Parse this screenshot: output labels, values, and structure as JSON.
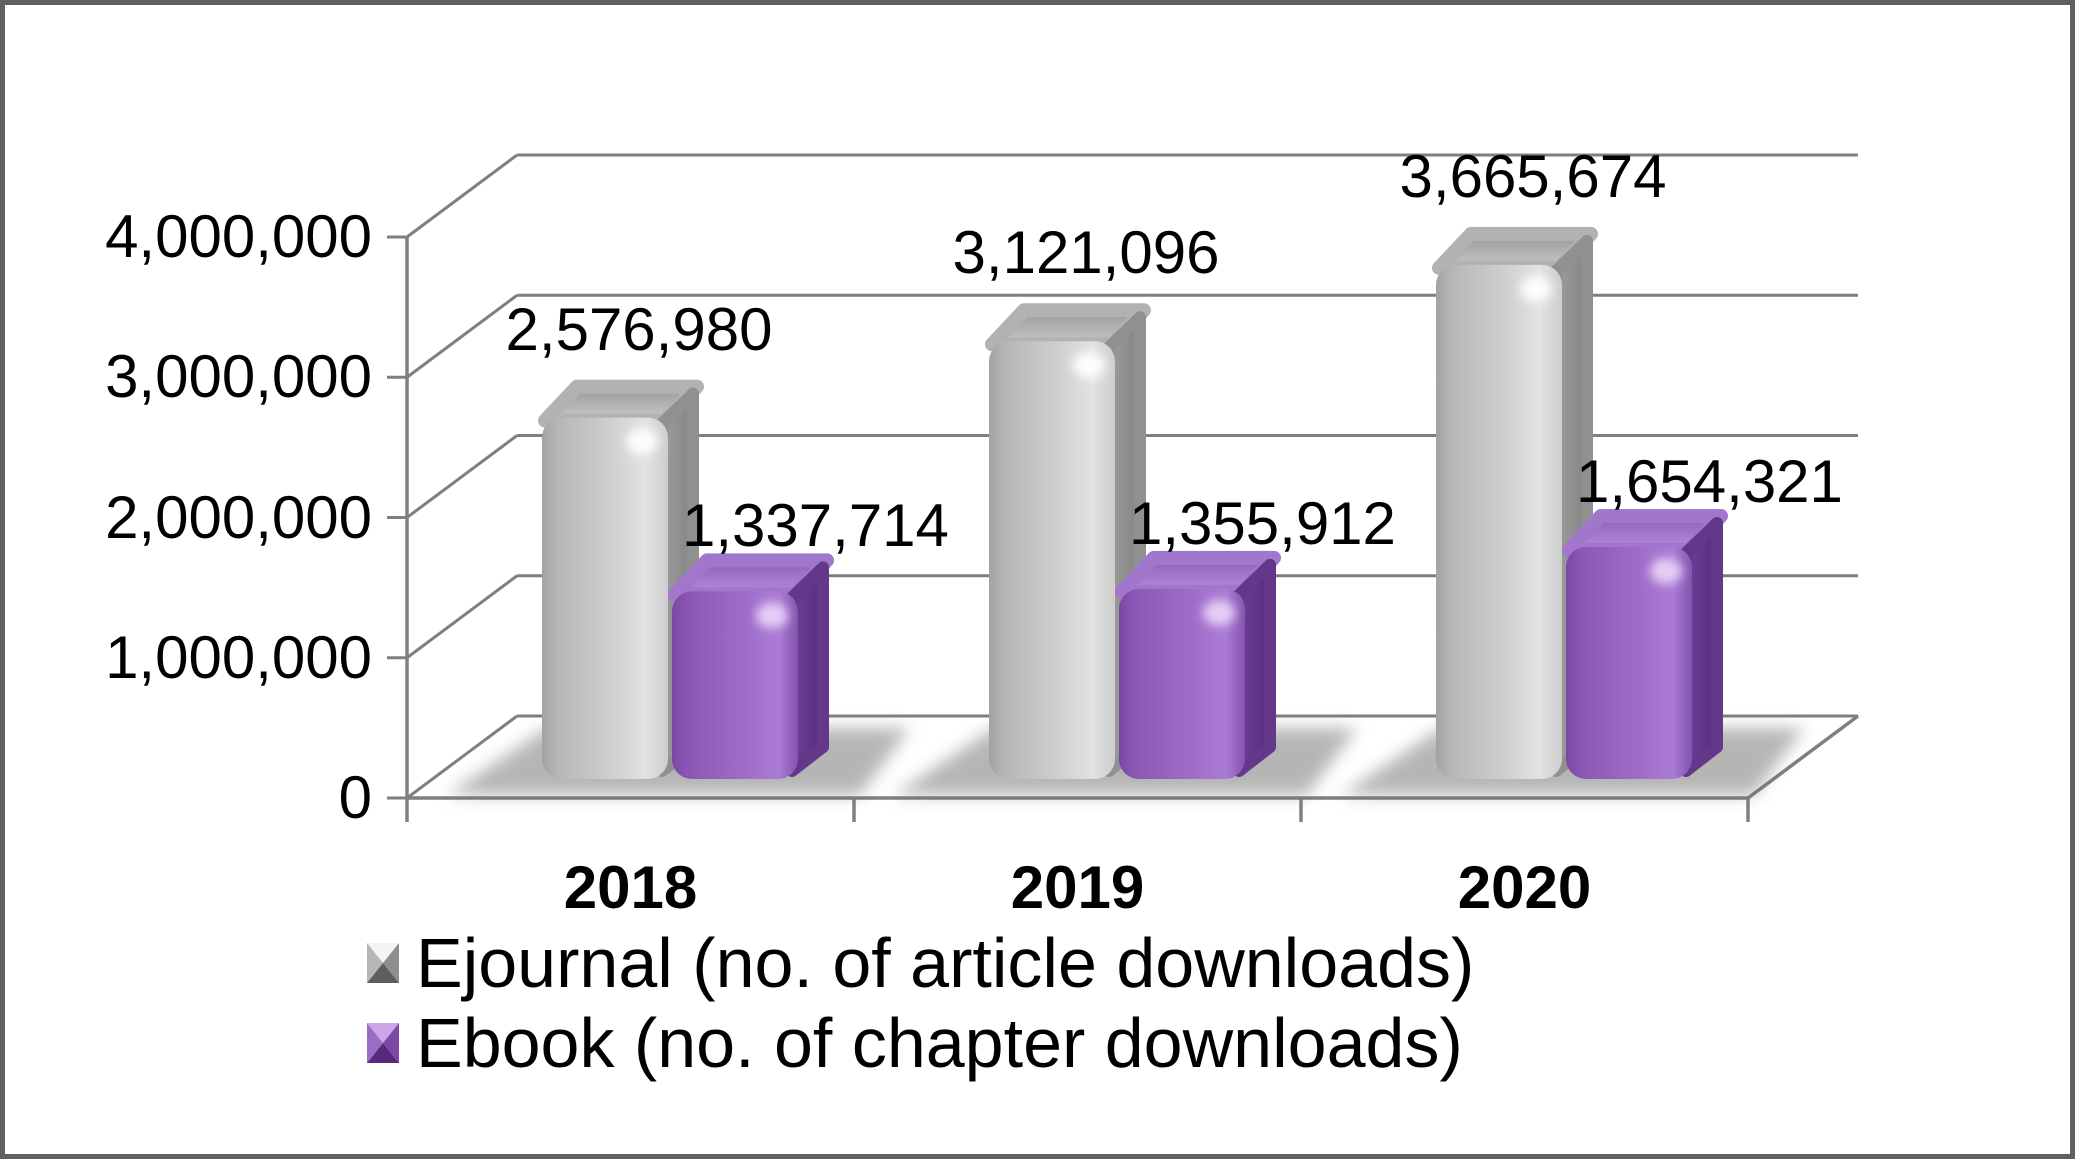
{
  "chart_data": {
    "type": "bar",
    "projection": "3d-clustered-column",
    "title": "",
    "categories": [
      "2018",
      "2019",
      "2020"
    ],
    "series": [
      {
        "name": "Ejournal (no. of article downloads)",
        "color": "#c6c6c6",
        "values": [
          2576980,
          3121096,
          3665674
        ],
        "labels": [
          "2,576,980",
          "3,121,096",
          "3,665,674"
        ]
      },
      {
        "name": "Ebook (no. of chapter downloads)",
        "color": "#9a67c2",
        "values": [
          1337714,
          1355912,
          1654321
        ],
        "labels": [
          "1,337,714",
          "1,355,912",
          "1,654,321"
        ]
      }
    ],
    "y_axis": {
      "min": 0,
      "max": 4000000,
      "tick_interval": 1000000,
      "tick_labels": [
        "0",
        "1,000,000",
        "2,000,000",
        "3,000,000",
        "4,000,000"
      ]
    },
    "grid": true,
    "legend_position": "bottom-left"
  },
  "colors": {
    "background": "#ffffff",
    "frame_border": "#606060",
    "gridline": "#7f7f7f",
    "text": "#000000",
    "ejournal_front": "#cccccc",
    "ejournal_side": "#8f8f8f",
    "ejournal_top": "#aaaaaa",
    "ebook_front": "#9c69c6",
    "ebook_side": "#6a3d92",
    "ebook_top": "#a37acc"
  }
}
